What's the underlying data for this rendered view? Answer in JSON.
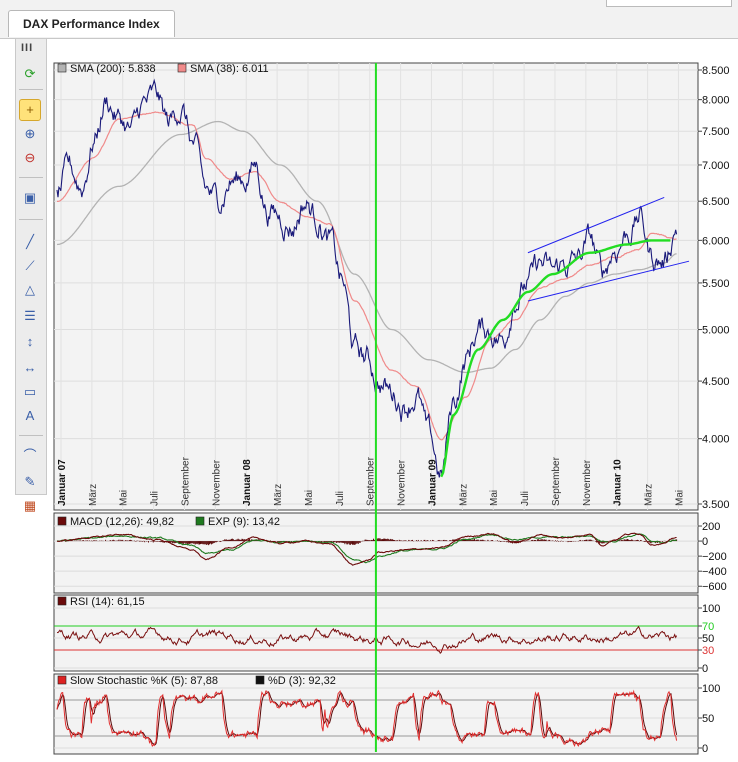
{
  "tab": {
    "title": "DAX Performance Index"
  },
  "toolbar": {
    "grip": "III",
    "buttons": [
      {
        "name": "refresh-icon",
        "glyph": "⟳",
        "color": "#2aa02a"
      },
      {
        "name": "crosshair-icon",
        "glyph": "+",
        "active": true,
        "color": "#8a5a00"
      },
      {
        "name": "zoom-in-icon",
        "glyph": "⊕"
      },
      {
        "name": "zoom-out-icon",
        "glyph": "⊖",
        "color": "#c0302a"
      },
      {
        "name": "monitor-icon",
        "glyph": "▣"
      },
      {
        "name": "line-tool-icon",
        "glyph": "╱"
      },
      {
        "name": "ray-tool-icon",
        "glyph": "⟋"
      },
      {
        "name": "triangle-tool-icon",
        "glyph": "△"
      },
      {
        "name": "fibonacci-tool-icon",
        "glyph": "☰"
      },
      {
        "name": "vertical-line-icon",
        "glyph": "↕"
      },
      {
        "name": "horizontal-line-icon",
        "glyph": "↔"
      },
      {
        "name": "rectangle-tool-icon",
        "glyph": "▭"
      },
      {
        "name": "text-tool-icon",
        "glyph": "A"
      },
      {
        "name": "arc-tool-icon",
        "glyph": "⌒"
      },
      {
        "name": "pencil-tool-icon",
        "glyph": "✎"
      },
      {
        "name": "color-palette-icon",
        "glyph": "▦",
        "color": "#c04a20"
      }
    ]
  },
  "chart_data": [
    {
      "type": "line",
      "panel": "price",
      "x_labels": [
        "Januar 07",
        "März",
        "Mai",
        "Juli",
        "September",
        "November",
        "Januar 08",
        "März",
        "Mai",
        "Juli",
        "September",
        "November",
        "Januar 09",
        "März",
        "Mai",
        "Juli",
        "September",
        "November",
        "Januar 10",
        "März",
        "Mai"
      ],
      "bold_x_labels": [
        "Januar 07",
        "Januar 08",
        "Januar 09",
        "Januar 10"
      ],
      "y_ticks": [
        "3.500",
        "4.000",
        "4.500",
        "5.000",
        "5.500",
        "6.000",
        "6.500",
        "7.000",
        "7.500",
        "8.000",
        "8.500"
      ],
      "y_scale": "log",
      "ylim": [
        3500,
        8500
      ],
      "legend": [
        {
          "label": "SMA (200): 5.838",
          "color": "#b3b3b3"
        },
        {
          "label": "SMA (38): 6.011",
          "color": "#f08a8a"
        }
      ],
      "series": [
        {
          "name": "DAX",
          "color": "#1a1a7a",
          "anchors": [
            [
              0,
              6600
            ],
            [
              1,
              6900
            ],
            [
              2,
              6700
            ],
            [
              3,
              7400
            ],
            [
              4,
              8000
            ],
            [
              5,
              7700
            ],
            [
              6,
              7500
            ],
            [
              7,
              7900
            ],
            [
              8,
              8000
            ],
            [
              9,
              7600
            ],
            [
              10,
              7900
            ],
            [
              11,
              7300
            ],
            [
              12,
              6600
            ],
            [
              13,
              6500
            ],
            [
              14,
              6800
            ],
            [
              15,
              6800
            ],
            [
              16,
              7000
            ],
            [
              17,
              6400
            ],
            [
              18,
              6300
            ],
            [
              19,
              6200
            ],
            [
              20,
              6500
            ],
            [
              21,
              6300
            ],
            [
              22,
              6000
            ],
            [
              23,
              5500
            ],
            [
              24,
              4800
            ],
            [
              25,
              4700
            ],
            [
              26,
              4500
            ],
            [
              27,
              4400
            ],
            [
              28,
              4300
            ],
            [
              29,
              4400
            ],
            [
              30,
              4000
            ],
            [
              31,
              3700
            ],
            [
              32,
              4300
            ],
            [
              33,
              4700
            ],
            [
              34,
              5000
            ],
            [
              35,
              5000
            ],
            [
              36,
              4900
            ],
            [
              37,
              5400
            ],
            [
              38,
              5500
            ],
            [
              39,
              5700
            ],
            [
              40,
              5600
            ],
            [
              41,
              5700
            ],
            [
              42,
              5750
            ],
            [
              43,
              6000
            ],
            [
              44,
              5600
            ],
            [
              45,
              5900
            ],
            [
              46,
              6100
            ],
            [
              47,
              6300
            ],
            [
              48,
              5800
            ],
            [
              49,
              5750
            ],
            [
              50,
              6200
            ]
          ]
        },
        {
          "name": "SMA (38)",
          "color": "#f08a8a",
          "anchors": [
            [
              0,
              6500
            ],
            [
              3,
              7100
            ],
            [
              5,
              7700
            ],
            [
              8,
              7800
            ],
            [
              11,
              7600
            ],
            [
              12,
              7100
            ],
            [
              14,
              6800
            ],
            [
              16,
              6900
            ],
            [
              18,
              6500
            ],
            [
              20,
              6300
            ],
            [
              22,
              6200
            ],
            [
              24,
              5300
            ],
            [
              27,
              4600
            ],
            [
              29,
              4450
            ],
            [
              31,
              4000
            ],
            [
              33,
              4350
            ],
            [
              35,
              4900
            ],
            [
              37,
              5100
            ],
            [
              39,
              5450
            ],
            [
              41,
              5550
            ],
            [
              43,
              5700
            ],
            [
              45,
              5800
            ],
            [
              47,
              5900
            ],
            [
              48,
              6100
            ],
            [
              50,
              6011
            ]
          ]
        },
        {
          "name": "SMA (200)",
          "color": "#b3b3b3",
          "anchors": [
            [
              0,
              5950
            ],
            [
              5,
              6700
            ],
            [
              10,
              7450
            ],
            [
              13,
              7650
            ],
            [
              15,
              7500
            ],
            [
              18,
              7000
            ],
            [
              21,
              6500
            ],
            [
              24,
              5600
            ],
            [
              27,
              5000
            ],
            [
              30,
              4700
            ],
            [
              33,
              4580
            ],
            [
              35,
              4620
            ],
            [
              37,
              4800
            ],
            [
              39,
              5100
            ],
            [
              41,
              5350
            ],
            [
              43,
              5500
            ],
            [
              45,
              5600
            ],
            [
              47,
              5650
            ],
            [
              49,
              5730
            ],
            [
              50,
              5838
            ]
          ]
        }
      ],
      "channel": {
        "color": "#2222ee",
        "upper": [
          [
            38,
            5850
          ],
          [
            49,
            6550
          ]
        ],
        "lower": [
          [
            38,
            5300
          ],
          [
            51,
            5750
          ]
        ]
      },
      "curve": {
        "color": "#22dd22",
        "anchors": [
          [
            31,
            3700
          ],
          [
            32,
            4200
          ],
          [
            34,
            4800
          ],
          [
            36,
            5100
          ],
          [
            38,
            5400
          ],
          [
            40,
            5600
          ],
          [
            43,
            5850
          ],
          [
            46,
            5950
          ],
          [
            48,
            6000
          ],
          [
            49.5,
            6000
          ]
        ]
      },
      "vertical_marker": {
        "color": "#22dd22",
        "label_index": 10.2
      }
    },
    {
      "type": "line",
      "panel": "macd",
      "y_ticks": [
        "200",
        "0",
        "−200",
        "−400",
        "−600"
      ],
      "ylim": [
        -650,
        280
      ],
      "legend": [
        {
          "label": "MACD (12,26): 49,82",
          "color": "#6b0a0a"
        },
        {
          "label": "EXP (9): 13,42",
          "color": "#1f7a1f"
        }
      ],
      "series": [
        {
          "name": "MACD (12,26)",
          "color": "#6b0a0a",
          "anchors": [
            [
              0,
              0
            ],
            [
              3,
              50
            ],
            [
              5,
              90
            ],
            [
              8,
              20
            ],
            [
              11,
              -120
            ],
            [
              12,
              -250
            ],
            [
              14,
              -80
            ],
            [
              16,
              40
            ],
            [
              18,
              -30
            ],
            [
              20,
              0
            ],
            [
              22,
              -40
            ],
            [
              24,
              -320
            ],
            [
              25,
              -260
            ],
            [
              26,
              -150
            ],
            [
              28,
              -120
            ],
            [
              30,
              -100
            ],
            [
              31,
              -90
            ],
            [
              33,
              60
            ],
            [
              35,
              100
            ],
            [
              37,
              -20
            ],
            [
              39,
              80
            ],
            [
              41,
              40
            ],
            [
              43,
              90
            ],
            [
              44,
              -50
            ],
            [
              45,
              20
            ],
            [
              46,
              90
            ],
            [
              47,
              100
            ],
            [
              48,
              -40
            ],
            [
              49,
              -30
            ],
            [
              50,
              50
            ]
          ]
        },
        {
          "name": "EXP (9)",
          "color": "#1f7a1f",
          "anchors": [
            [
              0,
              0
            ],
            [
              3,
              40
            ],
            [
              5,
              70
            ],
            [
              8,
              40
            ],
            [
              11,
              -60
            ],
            [
              12,
              -170
            ],
            [
              14,
              -120
            ],
            [
              16,
              10
            ],
            [
              18,
              -10
            ],
            [
              20,
              5
            ],
            [
              22,
              -20
            ],
            [
              24,
              -250
            ],
            [
              25,
              -280
            ],
            [
              26,
              -200
            ],
            [
              28,
              -130
            ],
            [
              30,
              -110
            ],
            [
              31,
              -100
            ],
            [
              33,
              20
            ],
            [
              35,
              90
            ],
            [
              37,
              20
            ],
            [
              39,
              50
            ],
            [
              41,
              50
            ],
            [
              43,
              70
            ],
            [
              44,
              0
            ],
            [
              45,
              0
            ],
            [
              46,
              60
            ],
            [
              47,
              90
            ],
            [
              48,
              0
            ],
            [
              49,
              -20
            ],
            [
              50,
              13
            ]
          ]
        }
      ]
    },
    {
      "type": "line",
      "panel": "rsi",
      "y_ticks": [
        "100",
        "70",
        "50",
        "30",
        "0"
      ],
      "ylim": [
        0,
        100
      ],
      "levels": [
        {
          "value": 70,
          "color": "#22cc22"
        },
        {
          "value": 30,
          "color": "#dd3333"
        }
      ],
      "legend": [
        {
          "label": "RSI (14): 61,15",
          "color": "#6b0a0a"
        }
      ],
      "series": [
        {
          "name": "RSI (14)",
          "color": "#7a1010"
        }
      ]
    },
    {
      "type": "line",
      "panel": "stochastic",
      "y_ticks": [
        "100",
        "50",
        "0"
      ],
      "ylim": [
        0,
        100
      ],
      "levels": [
        {
          "value": 80,
          "color": "#999999"
        },
        {
          "value": 20,
          "color": "#999999"
        }
      ],
      "legend": [
        {
          "label": "Slow Stochastic %K (5): 87,88",
          "color": "#dd2222"
        },
        {
          "label": "%D (3): 92,32",
          "color": "#111111"
        }
      ],
      "series": [
        {
          "name": "Slow Stochastic %K (5)",
          "color": "#e23030"
        },
        {
          "name": "%D (3)",
          "color": "#5a0a0a"
        }
      ]
    }
  ]
}
